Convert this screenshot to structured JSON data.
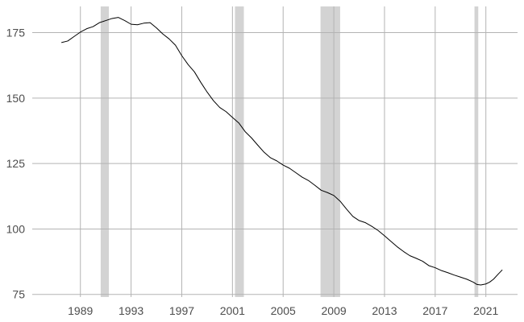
{
  "chart_data": {
    "type": "line",
    "title": "",
    "xlabel": "",
    "ylabel": "",
    "xlim": [
      1985.2,
      2023.5
    ],
    "ylim": [
      74,
      185
    ],
    "grid": true,
    "legend": "none",
    "colors": {
      "line": "#000000",
      "grid": "#b3b3b3",
      "recession_band": "#d3d3d3",
      "tick_text": "#4d4d4d",
      "background": "#ffffff"
    },
    "x_ticks": [
      1989,
      1993,
      1997,
      2001,
      2005,
      2009,
      2013,
      2017,
      2021
    ],
    "x_tick_labels": [
      "1989",
      "1993",
      "1997",
      "2001",
      "2005",
      "2009",
      "2013",
      "2017",
      "2021"
    ],
    "y_ticks": [
      75,
      100,
      125,
      150,
      175
    ],
    "y_tick_labels": [
      "75",
      "100",
      "125",
      "150",
      "175"
    ],
    "recession_bands": [
      {
        "start": 1990.6,
        "end": 1991.25
      },
      {
        "start": 2001.2,
        "end": 2001.9
      },
      {
        "start": 2007.95,
        "end": 2009.5
      },
      {
        "start": 2020.1,
        "end": 2020.4
      }
    ],
    "series": [
      {
        "x": [
          1987.5,
          1988.0,
          1988.5,
          1989.0,
          1989.5,
          1990.0,
          1990.5,
          1991.0,
          1991.5,
          1992.0,
          1992.5,
          1993.0,
          1993.5,
          1994.0,
          1994.5,
          1995.0,
          1995.5,
          1996.0,
          1996.5,
          1997.0,
          1997.5,
          1998.0,
          1998.5,
          1999.0,
          1999.5,
          2000.0,
          2000.5,
          2001.0,
          2001.5,
          2002.0,
          2002.5,
          2003.0,
          2003.5,
          2004.0,
          2004.5,
          2005.0,
          2005.5,
          2006.0,
          2006.5,
          2007.0,
          2007.5,
          2008.0,
          2008.5,
          2009.0,
          2009.5,
          2010.0,
          2010.5,
          2011.0,
          2011.5,
          2012.0,
          2012.5,
          2013.0,
          2013.5,
          2014.0,
          2014.5,
          2015.0,
          2015.5,
          2016.0,
          2016.5,
          2017.0,
          2017.5,
          2018.0,
          2018.5,
          2019.0,
          2019.5,
          2020.0,
          2020.3,
          2020.6,
          2021.0,
          2021.3,
          2021.6,
          2022.0,
          2022.3
        ],
        "values": [
          171.2,
          171.8,
          173.5,
          175.2,
          176.5,
          177.3,
          178.8,
          179.6,
          180.4,
          180.8,
          179.6,
          178.2,
          178.0,
          178.6,
          178.8,
          176.8,
          174.5,
          172.6,
          170.2,
          166.2,
          162.8,
          160.0,
          156.0,
          152.3,
          149.0,
          146.4,
          144.8,
          142.6,
          140.5,
          137.2,
          134.8,
          132.0,
          129.3,
          127.2,
          126.0,
          124.4,
          123.2,
          121.5,
          119.8,
          118.5,
          116.7,
          114.8,
          113.9,
          112.8,
          110.6,
          107.6,
          104.8,
          103.2,
          102.4,
          101.0,
          99.4,
          97.4,
          95.3,
          93.2,
          91.4,
          89.8,
          88.8,
          87.7,
          86.0,
          85.2,
          84.1,
          83.3,
          82.4,
          81.6,
          80.8,
          79.7,
          78.8,
          78.6,
          79.0,
          79.7,
          80.8,
          82.9,
          84.4
        ]
      }
    ]
  }
}
